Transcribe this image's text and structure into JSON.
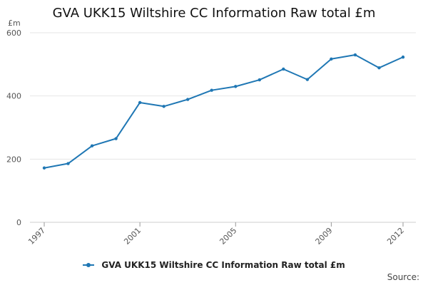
{
  "chart_data": {
    "type": "line",
    "title": "GVA UKK15 Wiltshire CC Information Raw total £m",
    "y_unit": "£m",
    "ylim": [
      0,
      600
    ],
    "y_ticks": [
      0,
      200,
      400,
      600
    ],
    "x_ticks": [
      1997,
      2001,
      2005,
      2009,
      2012
    ],
    "grid": true,
    "legend_position": "bottom",
    "series": [
      {
        "name": "GVA UKK15 Wiltshire CC Information Raw total £m",
        "color": "#1f77b4",
        "x": [
          1997,
          1998,
          1999,
          2000,
          2001,
          2002,
          2003,
          2004,
          2005,
          2006,
          2007,
          2008,
          2009,
          2010,
          2011,
          2012
        ],
        "values": [
          172,
          186,
          242,
          265,
          379,
          367,
          389,
          418,
          430,
          451,
          485,
          452,
          517,
          530,
          489,
          523
        ]
      }
    ],
    "source_label": "Source:"
  }
}
